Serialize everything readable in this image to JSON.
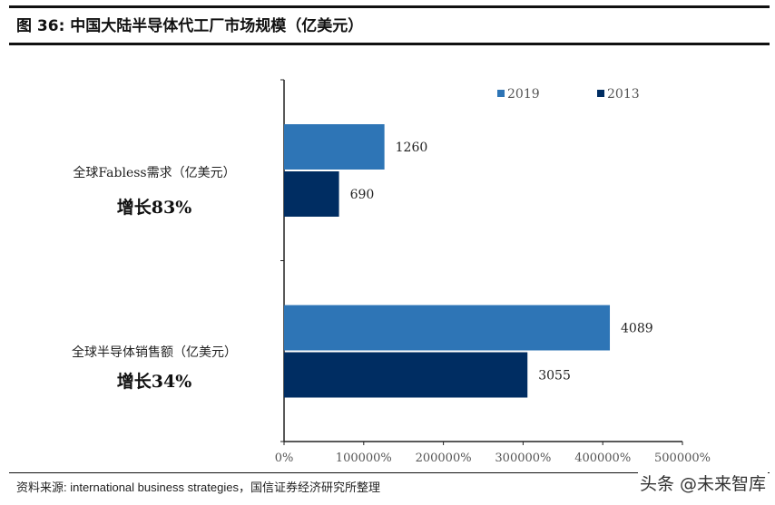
{
  "figure_title": "图 36: 中国大陆半导体代工厂市场规模（亿美元）",
  "source": "资料来源: international business strategies，国信证券经济研究所整理",
  "watermark": "头条 @未来智库",
  "chart_data": {
    "type": "bar",
    "orientation": "horizontal",
    "categories": [
      "全球Fabless需求（亿美元）",
      "全球半导体销售额（亿美元）"
    ],
    "category_annotations": [
      "增长83%",
      "增长34%"
    ],
    "series": [
      {
        "name": "2019",
        "values": [
          1260,
          4089
        ],
        "color": "#2E75B6"
      },
      {
        "name": "2013",
        "values": [
          690,
          3055
        ],
        "color": "#002D62"
      }
    ],
    "x_tick_labels": [
      "0%",
      "100000%",
      "200000%",
      "300000%",
      "400000%",
      "500000%"
    ],
    "xlim": [
      0,
      5000
    ],
    "grid": false,
    "legend": "top-right"
  }
}
